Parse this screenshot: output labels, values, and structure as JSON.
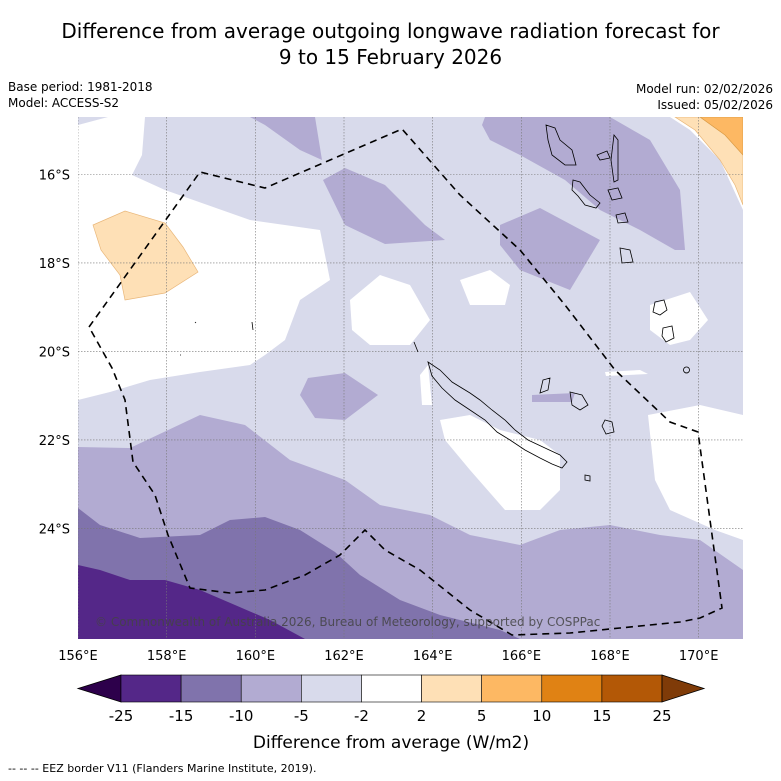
{
  "title": {
    "line1": "Difference from average outgoing longwave radiation forecast for",
    "line2": "9 to 15 February 2026"
  },
  "meta_left": {
    "base_period": "Base period: 1981-2018",
    "model": "Model: ACCESS-S2"
  },
  "meta_right": {
    "model_run": "Model run: 02/02/2026",
    "issued": "Issued: 05/02/2026"
  },
  "map": {
    "region": "New Caledonia",
    "lon_range": [
      156.0,
      171.0
    ],
    "lat_range": [
      -26.5,
      -14.7
    ],
    "x_ticks": [
      "156°E",
      "158°E",
      "160°E",
      "162°E",
      "164°E",
      "166°E",
      "168°E",
      "170°E"
    ],
    "x_tick_values": [
      156,
      158,
      160,
      162,
      164,
      166,
      168,
      170
    ],
    "y_ticks": [
      "16°S",
      "18°S",
      "20°S",
      "22°S",
      "24°S"
    ],
    "y_tick_values": [
      -16,
      -18,
      -20,
      -22,
      -24
    ],
    "copyright": "© Commonwealth of Australia 2026, Bureau of Meteorology, supported by COSPPac",
    "eez_border_style": "dashed"
  },
  "colorbar": {
    "title": "Difference from average (W/m2)",
    "levels": [
      "-25",
      "-15",
      "-10",
      "-5",
      "-2",
      "2",
      "5",
      "10",
      "15",
      "25"
    ],
    "colors": [
      "#542788",
      "#8073ac",
      "#b2abd2",
      "#d8daeb",
      "#ffffff",
      "#fee0b6",
      "#fdb863",
      "#e08214",
      "#b35806"
    ],
    "under_color": "#2d004b",
    "over_color": "#7f3b08"
  },
  "footnote": "--  --  -- EEZ border V11 (Flanders Marine Institute, 2019)."
}
